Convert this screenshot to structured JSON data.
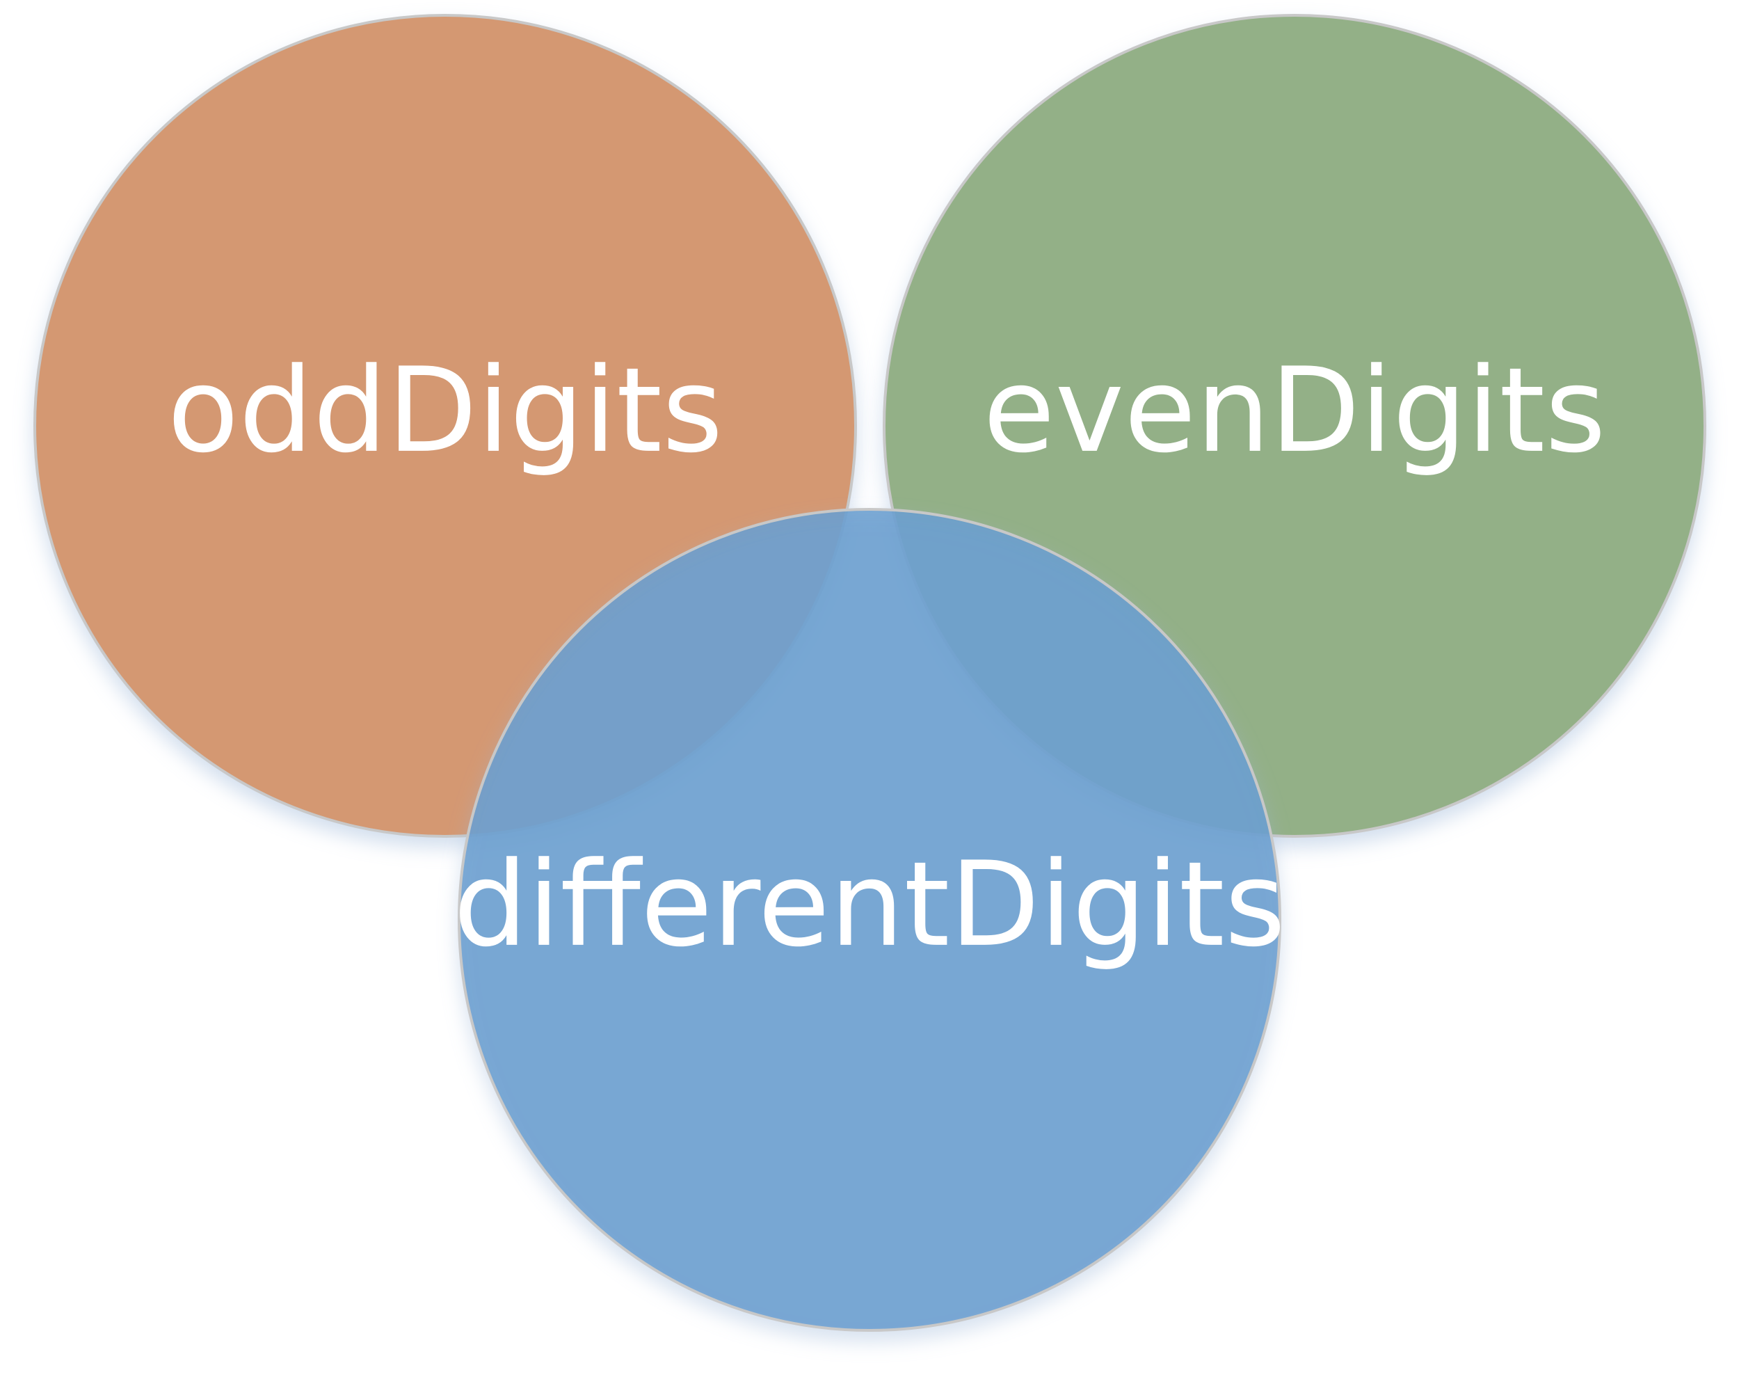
{
  "diagram": {
    "type": "venn",
    "sets": [
      {
        "id": "odd",
        "label": "oddDigits",
        "color": "#D49872"
      },
      {
        "id": "even",
        "label": "evenDigits",
        "color": "#93B087"
      },
      {
        "id": "different",
        "label": "differentDigits",
        "color": "#6A9ECF"
      }
    ]
  }
}
